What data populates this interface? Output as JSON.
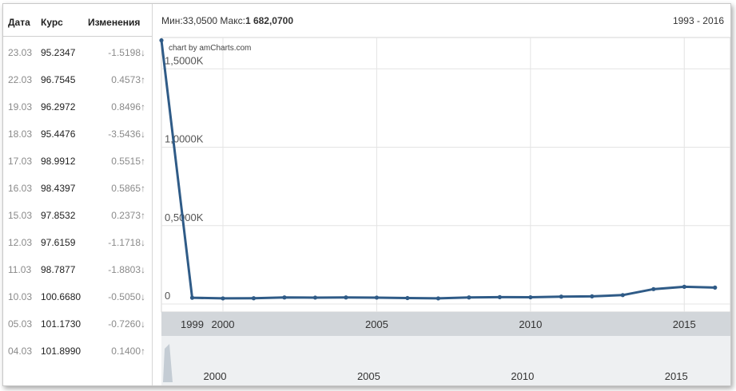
{
  "table": {
    "headers": {
      "date": "Дата",
      "rate": "Курс",
      "change": "Изменения"
    },
    "rows": [
      {
        "date": "23.03",
        "rate": "95.2347",
        "change": "-1.5198",
        "dir": "down"
      },
      {
        "date": "22.03",
        "rate": "96.7545",
        "change": "0.4573",
        "dir": "up"
      },
      {
        "date": "19.03",
        "rate": "96.2972",
        "change": "0.8496",
        "dir": "up"
      },
      {
        "date": "18.03",
        "rate": "95.4476",
        "change": "-3.5436",
        "dir": "down"
      },
      {
        "date": "17.03",
        "rate": "98.9912",
        "change": "0.5515",
        "dir": "up"
      },
      {
        "date": "16.03",
        "rate": "98.4397",
        "change": "0.5865",
        "dir": "up"
      },
      {
        "date": "15.03",
        "rate": "97.8532",
        "change": "0.2373",
        "dir": "up"
      },
      {
        "date": "12.03",
        "rate": "97.6159",
        "change": "-1.1718",
        "dir": "down"
      },
      {
        "date": "11.03",
        "rate": "98.7877",
        "change": "-1.8803",
        "dir": "down"
      },
      {
        "date": "10.03",
        "rate": "100.6680",
        "change": "-0.5050",
        "dir": "down"
      },
      {
        "date": "05.03",
        "rate": "101.1730",
        "change": "-0.7260",
        "dir": "down"
      },
      {
        "date": "04.03",
        "rate": "101.8990",
        "change": "0.1400",
        "dir": "up"
      }
    ],
    "arrow_up": "↑",
    "arrow_down": "↓"
  },
  "header": {
    "min_label": "Мин:",
    "min_value": "33,0500",
    "max_label": "Макс:",
    "max_value": "1 682,0700",
    "range": "1993 - 2016"
  },
  "colors": {
    "line": "#2f5b87",
    "grid": "#e4e4e4",
    "scroll_bg": "#eef0f2",
    "scroll_dark": "#d2d6da"
  },
  "chart_data": {
    "type": "line",
    "credit": "chart by amCharts.com",
    "x": [
      1998,
      1999,
      2000,
      2001,
      2002,
      2003,
      2004,
      2005,
      2006,
      2007,
      2008,
      2009,
      2010,
      2011,
      2012,
      2013,
      2014,
      2015,
      2016
    ],
    "values": [
      1682,
      40,
      36,
      37,
      42,
      41,
      42,
      41,
      38,
      36,
      42,
      44,
      43,
      47,
      49,
      57,
      95,
      110,
      105
    ],
    "ylim": [
      0,
      1700
    ],
    "yticks": [
      0,
      500,
      1000,
      1500
    ],
    "ytick_labels": [
      "0",
      "0,5000K",
      "1,0000K",
      "1,5000K"
    ],
    "xlim": [
      1998,
      2016.5
    ],
    "xtick_labels": [
      "1999",
      "2000",
      "2005",
      "2010",
      "2015"
    ],
    "xtick_values": [
      1999,
      2000,
      2005,
      2010,
      2015
    ],
    "navigator_labels": [
      "2000",
      "2005",
      "2010",
      "2015"
    ],
    "navigator_values": [
      2000,
      2005,
      2010,
      2015
    ]
  }
}
